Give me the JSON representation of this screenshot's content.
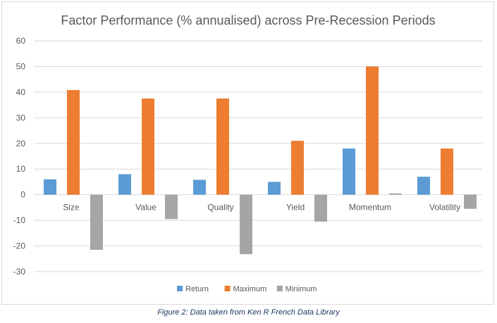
{
  "chart_data": {
    "type": "bar",
    "title": "Factor Performance (% annualised) across Pre-Recession Periods",
    "categories": [
      "Size",
      "Value",
      "Quality",
      "Yield",
      "Momentum",
      "Volatility"
    ],
    "series": [
      {
        "name": "Return",
        "color": "#5b9bd5",
        "values": [
          6,
          8,
          5.8,
          5,
          18,
          7
        ]
      },
      {
        "name": "Maximum",
        "color": "#ed7d31",
        "values": [
          40.8,
          37.5,
          37.5,
          21,
          50,
          18
        ]
      },
      {
        "name": "Minimum",
        "color": "#a5a5a5",
        "values": [
          -21.5,
          -9.5,
          -23.2,
          -10.5,
          0.5,
          -5.5
        ]
      }
    ],
    "ylim": [
      -30,
      60
    ],
    "yticks": [
      "60",
      "50",
      "40",
      "30",
      "20",
      "10",
      "0",
      "-10",
      "-20",
      "-30"
    ],
    "ytick_values": [
      60,
      50,
      40,
      30,
      20,
      10,
      0,
      -10,
      -20,
      -30
    ],
    "grid": true,
    "legend_position": "bottom"
  },
  "caption": "Figure 2: Data taken from Ken R French Data Library"
}
